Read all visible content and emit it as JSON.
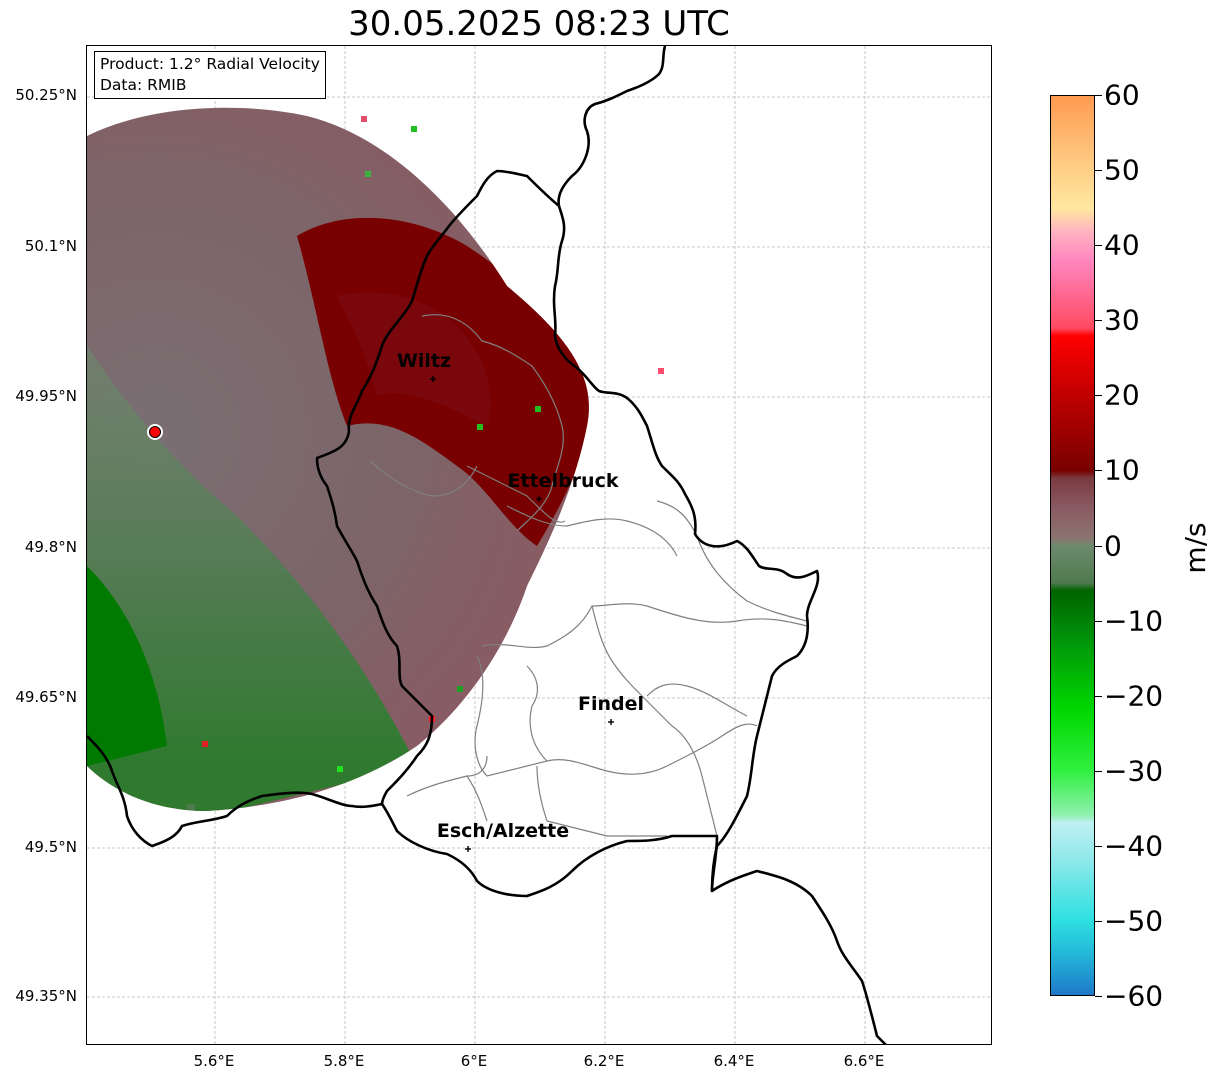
{
  "title": "30.05.2025 08:23 UTC",
  "info": {
    "product": "Product: 1.2° Radial Velocity",
    "data": "Data: RMIB"
  },
  "lat_ticks": [
    "50.25°N",
    "50.1°N",
    "49.95°N",
    "49.8°N",
    "49.65°N",
    "49.5°N",
    "49.35°N"
  ],
  "lon_ticks": [
    "5.6°E",
    "5.8°E",
    "6°E",
    "6.2°E",
    "6.4°E",
    "6.6°E"
  ],
  "cities": [
    {
      "name": "Wiltz"
    },
    {
      "name": "Ettelbruck"
    },
    {
      "name": "Findel"
    },
    {
      "name": "Esch/Alzette"
    }
  ],
  "colorbar": {
    "unit": "m/s",
    "min": -60,
    "max": 60,
    "ticks": [
      "60",
      "50",
      "40",
      "30",
      "20",
      "10",
      "0",
      "−10",
      "−20",
      "−30",
      "−40",
      "−50",
      "−60"
    ],
    "stops": [
      {
        "v": -60,
        "color": "#1f78c8"
      },
      {
        "v": -55,
        "color": "#22b2d8"
      },
      {
        "v": -50,
        "color": "#2ee0e0"
      },
      {
        "v": -42,
        "color": "#8ee8ea"
      },
      {
        "v": -37,
        "color": "#bff0f2"
      },
      {
        "v": -36,
        "color": "#8ff0b0"
      },
      {
        "v": -30,
        "color": "#30f040"
      },
      {
        "v": -22,
        "color": "#00d800"
      },
      {
        "v": -12,
        "color": "#00900a"
      },
      {
        "v": -6,
        "color": "#006400"
      },
      {
        "v": -5,
        "color": "#4e7a4e"
      },
      {
        "v": 0,
        "color": "#6e8a6e"
      },
      {
        "v": 1,
        "color": "#8a7470"
      },
      {
        "v": 5,
        "color": "#8a5a62"
      },
      {
        "v": 9,
        "color": "#7a3a40"
      },
      {
        "v": 10,
        "color": "#780000"
      },
      {
        "v": 20,
        "color": "#c00000"
      },
      {
        "v": 28,
        "color": "#ff0000"
      },
      {
        "v": 29,
        "color": "#ff4a60"
      },
      {
        "v": 38,
        "color": "#ff86c0"
      },
      {
        "v": 42,
        "color": "#ffb4c0"
      },
      {
        "v": 45,
        "color": "#ffe8a0"
      },
      {
        "v": 53,
        "color": "#ffc078"
      },
      {
        "v": 60,
        "color": "#ff9a50"
      }
    ]
  },
  "colors": {
    "approaching": "#006400",
    "receding": "#780000",
    "radar_site": "#ff0000",
    "border": "#000000",
    "canton_border": "#808080",
    "grid": "#b8b8b8"
  }
}
